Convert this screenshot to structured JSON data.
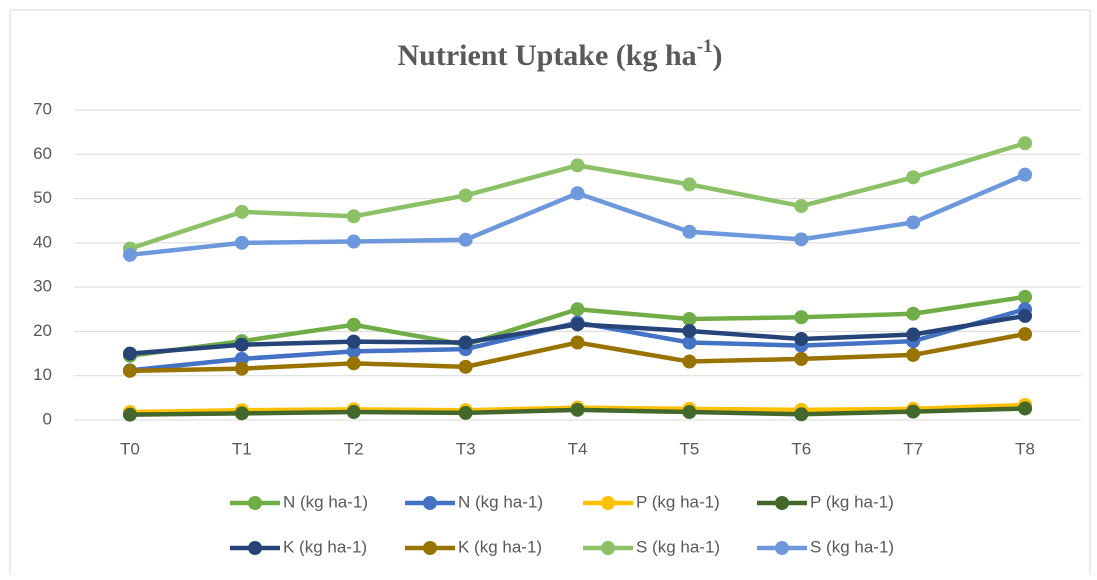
{
  "chart_data": {
    "type": "line",
    "title": {
      "main": "Nutrient Uptake (kg ha",
      "superscript": "-1",
      "close": ")"
    },
    "categories": [
      "T0",
      "T1",
      "T2",
      "T3",
      "T4",
      "T5",
      "T6",
      "T7",
      "T8"
    ],
    "series": [
      {
        "name": "N (kg ha-1)",
        "color": "#70ad47",
        "values": [
          14.5,
          17.8,
          21.5,
          17,
          25,
          22.8,
          23.2,
          24,
          27.8
        ]
      },
      {
        "name": "N (kg ha-1)",
        "color": "#4472c4",
        "values": [
          11.2,
          13.8,
          15.5,
          16,
          22,
          17.5,
          16.8,
          17.8,
          25
        ]
      },
      {
        "name": "P (kg ha-1)",
        "color": "#ffc000",
        "values": [
          1.8,
          2.2,
          2.4,
          2.2,
          2.8,
          2.5,
          2.3,
          2.5,
          3.4
        ]
      },
      {
        "name": "P (kg ha-1)",
        "color": "#43682b",
        "values": [
          1.2,
          1.5,
          1.8,
          1.6,
          2.3,
          1.8,
          1.3,
          1.9,
          2.6
        ]
      },
      {
        "name": "K (kg ha-1)",
        "color": "#264478",
        "values": [
          15,
          17,
          17.7,
          17.5,
          21.6,
          20.1,
          18.3,
          19.3,
          23.5
        ]
      },
      {
        "name": "K (kg ha-1)",
        "color": "#997300",
        "values": [
          11.1,
          11.6,
          12.8,
          12,
          17.5,
          13.2,
          13.8,
          14.7,
          19.4
        ]
      },
      {
        "name": "S (kg ha-1)",
        "color": "#8cc168",
        "values": [
          38.7,
          47,
          46,
          50.7,
          57.5,
          53.2,
          48.3,
          54.8,
          62.5
        ]
      },
      {
        "name": "S (kg ha-1)",
        "color": "#6e98dc",
        "values": [
          37.3,
          40,
          40.3,
          40.7,
          51.2,
          42.5,
          40.8,
          44.6,
          55.4
        ]
      }
    ],
    "ylim": [
      0,
      70
    ],
    "yticks": [
      0,
      10,
      20,
      30,
      40,
      50,
      60,
      70
    ],
    "grid": true
  }
}
